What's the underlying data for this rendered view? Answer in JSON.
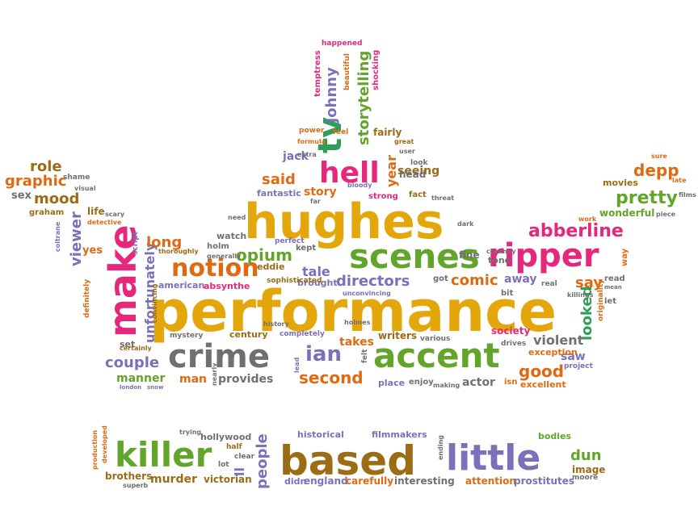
{
  "palette": {
    "gold": "#e3a70b",
    "green": "#63a52b",
    "purple": "#7c70b8",
    "pink": "#e6287c",
    "orange": "#e06a12",
    "brown": "#9b6b16",
    "gray": "#707070",
    "teal": "#2f9e57"
  },
  "words": [
    {
      "text": "performance",
      "color": "gold"
    },
    {
      "text": "hughes",
      "color": "gold"
    },
    {
      "text": "scenes",
      "color": "green"
    },
    {
      "text": "ripper",
      "color": "pink"
    },
    {
      "text": "crime",
      "color": "gray"
    },
    {
      "text": "accent",
      "color": "green"
    },
    {
      "text": "make",
      "color": "pink"
    },
    {
      "text": "notion",
      "color": "orange"
    },
    {
      "text": "hell",
      "color": "pink"
    },
    {
      "text": "tv",
      "color": "teal"
    },
    {
      "text": "johnny",
      "color": "purple"
    },
    {
      "text": "storytelling",
      "color": "green"
    },
    {
      "text": "abberline",
      "color": "pink"
    },
    {
      "text": "pretty",
      "color": "green"
    },
    {
      "text": "depp",
      "color": "orange"
    },
    {
      "text": "ian",
      "color": "purple"
    },
    {
      "text": "looked",
      "color": "teal"
    },
    {
      "text": "directors",
      "color": "purple"
    },
    {
      "text": "comic",
      "color": "orange"
    },
    {
      "text": "opium",
      "color": "green"
    },
    {
      "text": "unfortunately",
      "color": "purple"
    },
    {
      "text": "viewer",
      "color": "purple"
    },
    {
      "text": "couple",
      "color": "purple"
    },
    {
      "text": "second",
      "color": "orange"
    },
    {
      "text": "good",
      "color": "orange"
    },
    {
      "text": "say",
      "color": "orange"
    },
    {
      "text": "violent",
      "color": "gray"
    },
    {
      "text": "role",
      "color": "brown"
    },
    {
      "text": "graphic",
      "color": "orange"
    },
    {
      "text": "mood",
      "color": "brown"
    },
    {
      "text": "sex",
      "color": "gray"
    },
    {
      "text": "said",
      "color": "orange"
    },
    {
      "text": "story",
      "color": "orange"
    },
    {
      "text": "jack",
      "color": "purple"
    },
    {
      "text": "year",
      "color": "orange"
    },
    {
      "text": "seeing",
      "color": "brown"
    },
    {
      "text": "tale",
      "color": "purple"
    },
    {
      "text": "takes",
      "color": "orange"
    },
    {
      "text": "away",
      "color": "purple"
    },
    {
      "text": "provides",
      "color": "gray"
    },
    {
      "text": "manner",
      "color": "green"
    },
    {
      "text": "man",
      "color": "orange"
    },
    {
      "text": "actor",
      "color": "gray"
    },
    {
      "text": "saw",
      "color": "purple"
    },
    {
      "text": "long",
      "color": "orange"
    },
    {
      "text": "killer",
      "color": "green"
    },
    {
      "text": "based",
      "color": "brown"
    },
    {
      "text": "little",
      "color": "purple"
    },
    {
      "text": "people",
      "color": "purple"
    },
    {
      "text": "murder",
      "color": "brown"
    },
    {
      "text": "dun",
      "color": "green"
    },
    {
      "text": "brothers",
      "color": "brown"
    },
    {
      "text": "victorian",
      "color": "brown"
    },
    {
      "text": "hollywood",
      "color": "gray"
    },
    {
      "text": "historical",
      "color": "purple"
    },
    {
      "text": "filmmakers",
      "color": "purple"
    },
    {
      "text": "england",
      "color": "purple"
    },
    {
      "text": "carefully",
      "color": "orange"
    },
    {
      "text": "interesting",
      "color": "gray"
    },
    {
      "text": "attention",
      "color": "orange"
    },
    {
      "text": "prostitutes",
      "color": "purple"
    },
    {
      "text": "image",
      "color": "brown"
    },
    {
      "text": "bodies",
      "color": "green"
    },
    {
      "text": "ll",
      "color": "purple"
    },
    {
      "text": "fine",
      "color": "gray"
    },
    {
      "text": "watch",
      "color": "gray"
    },
    {
      "text": "eddie",
      "color": "brown"
    },
    {
      "text": "american",
      "color": "purple"
    },
    {
      "text": "absynthe",
      "color": "pink"
    },
    {
      "text": "century",
      "color": "brown"
    },
    {
      "text": "brought",
      "color": "purple"
    },
    {
      "text": "sophisticated",
      "color": "brown"
    },
    {
      "text": "writers",
      "color": "brown"
    },
    {
      "text": "various",
      "color": "gray"
    },
    {
      "text": "society",
      "color": "pink"
    },
    {
      "text": "drives",
      "color": "gray"
    },
    {
      "text": "exception",
      "color": "orange"
    },
    {
      "text": "place",
      "color": "purple"
    },
    {
      "text": "enjoy",
      "color": "gray"
    },
    {
      "text": "excellent",
      "color": "orange"
    },
    {
      "text": "wonderful",
      "color": "green"
    },
    {
      "text": "movies",
      "color": "brown"
    },
    {
      "text": "fantastic",
      "color": "purple"
    },
    {
      "text": "head",
      "color": "gray"
    },
    {
      "text": "fairly",
      "color": "brown"
    },
    {
      "text": "set",
      "color": "gray"
    },
    {
      "text": "yes",
      "color": "orange"
    },
    {
      "text": "life",
      "color": "brown"
    },
    {
      "text": "graham",
      "color": "brown"
    },
    {
      "text": "mystery",
      "color": "gray"
    },
    {
      "text": "completely",
      "color": "purple"
    },
    {
      "text": "kept",
      "color": "gray"
    },
    {
      "text": "holm",
      "color": "gray"
    },
    {
      "text": "tone",
      "color": "gray"
    },
    {
      "text": "got",
      "color": "gray"
    },
    {
      "text": "fact",
      "color": "brown"
    },
    {
      "text": "strong",
      "color": "pink"
    },
    {
      "text": "temptress",
      "color": "pink"
    },
    {
      "text": "happened",
      "color": "pink"
    },
    {
      "text": "shocking",
      "color": "pink"
    },
    {
      "text": "beautiful",
      "color": "orange"
    },
    {
      "text": "shame",
      "color": "gray"
    },
    {
      "text": "visual",
      "color": "gray"
    },
    {
      "text": "scary",
      "color": "gray"
    },
    {
      "text": "detective",
      "color": "orange"
    },
    {
      "text": "script",
      "color": "purple"
    },
    {
      "text": "coltrane",
      "color": "purple"
    },
    {
      "text": "thoroughly",
      "color": "brown"
    },
    {
      "text": "definitely",
      "color": "orange"
    },
    {
      "text": "convincing",
      "color": "brown"
    },
    {
      "text": "certainly",
      "color": "brown"
    },
    {
      "text": "london",
      "color": "purple"
    },
    {
      "text": "snow",
      "color": "purple"
    },
    {
      "text": "nearly",
      "color": "gray"
    },
    {
      "text": "lead",
      "color": "purple"
    },
    {
      "text": "felt",
      "color": "gray"
    },
    {
      "text": "making",
      "color": "gray"
    },
    {
      "text": "isn",
      "color": "orange"
    },
    {
      "text": "project",
      "color": "purple"
    },
    {
      "text": "originality",
      "color": "orange"
    },
    {
      "text": "let",
      "color": "gray"
    },
    {
      "text": "read",
      "color": "gray"
    },
    {
      "text": "mean",
      "color": "gray"
    },
    {
      "text": "way",
      "color": "orange"
    },
    {
      "text": "killings",
      "color": "gray"
    },
    {
      "text": "real",
      "color": "gray"
    },
    {
      "text": "bit",
      "color": "gray"
    },
    {
      "text": "cockney",
      "color": "gray"
    },
    {
      "text": "work",
      "color": "orange"
    },
    {
      "text": "piece",
      "color": "gray"
    },
    {
      "text": "films",
      "color": "gray"
    },
    {
      "text": "late",
      "color": "orange"
    },
    {
      "text": "sure",
      "color": "orange"
    },
    {
      "text": "dark",
      "color": "gray"
    },
    {
      "text": "threat",
      "color": "gray"
    },
    {
      "text": "need",
      "color": "gray"
    },
    {
      "text": "perfect",
      "color": "purple"
    },
    {
      "text": "history",
      "color": "gray"
    },
    {
      "text": "generally",
      "color": "gray"
    },
    {
      "text": "holmes",
      "color": "gray"
    },
    {
      "text": "unconvincing",
      "color": "purple"
    },
    {
      "text": "power",
      "color": "orange"
    },
    {
      "text": "formula",
      "color": "orange"
    },
    {
      "text": "extra",
      "color": "gray"
    },
    {
      "text": "far",
      "color": "gray"
    },
    {
      "text": "feel",
      "color": "orange"
    },
    {
      "text": "bloody",
      "color": "purple"
    },
    {
      "text": "great",
      "color": "brown"
    },
    {
      "text": "user",
      "color": "gray"
    },
    {
      "text": "look",
      "color": "gray"
    },
    {
      "text": "trying",
      "color": "gray"
    },
    {
      "text": "half",
      "color": "brown"
    },
    {
      "text": "clear",
      "color": "gray"
    },
    {
      "text": "lot",
      "color": "gray"
    },
    {
      "text": "didn",
      "color": "purple"
    },
    {
      "text": "ending",
      "color": "gray"
    },
    {
      "text": "production",
      "color": "orange"
    },
    {
      "text": "developed",
      "color": "orange"
    },
    {
      "text": "superb",
      "color": "gray"
    },
    {
      "text": "moore",
      "color": "gray"
    }
  ]
}
